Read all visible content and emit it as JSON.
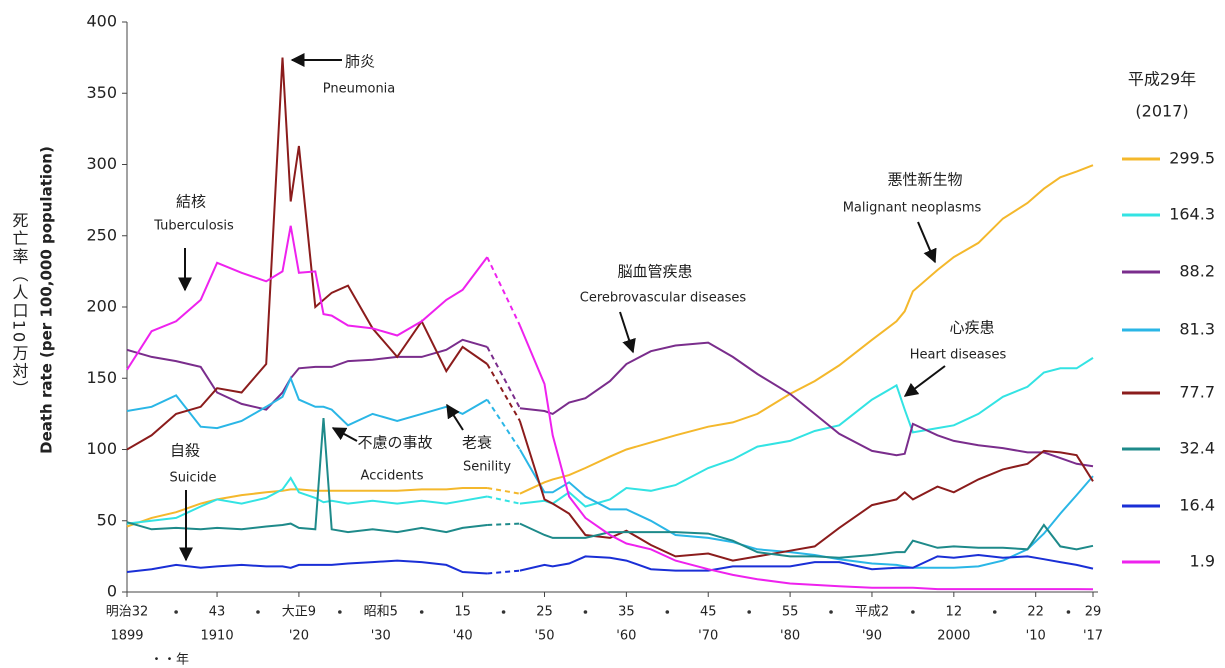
{
  "chart_data": {
    "type": "line",
    "ylabel": "死亡率（人口10万対）",
    "ylabel_en": "Death rate (per 100,000 population)",
    "xlabel": "・・年",
    "legend_title": "平成29年",
    "legend_subtitle": "(2017)",
    "xlim": [
      1899,
      2017
    ],
    "ylim": [
      0,
      400
    ],
    "yticks": [
      0,
      50,
      100,
      150,
      200,
      250,
      300,
      350,
      400
    ],
    "xticks": [
      {
        "value": 1899,
        "label": "明治32"
      },
      {
        "value": 1910,
        "label": "43"
      },
      {
        "value": 1920,
        "label": "大正9"
      },
      {
        "value": 1930,
        "label": "昭和5"
      },
      {
        "value": 1940,
        "label": "15"
      },
      {
        "value": 1950,
        "label": "25"
      },
      {
        "value": 1960,
        "label": "35"
      },
      {
        "value": 1970,
        "label": "45"
      },
      {
        "value": 1980,
        "label": "55"
      },
      {
        "value": 1990,
        "label": "平成2"
      },
      {
        "value": 2000,
        "label": "12"
      },
      {
        "value": 2010,
        "label": "22"
      },
      {
        "value": 2017,
        "label": "29"
      }
    ],
    "xticks_western": [
      1899,
      1910,
      {
        "value": 1920,
        "label": "'20"
      },
      {
        "value": 1930,
        "label": "'30"
      },
      {
        "value": 1940,
        "label": "'40"
      },
      {
        "value": 1950,
        "label": "'50"
      },
      {
        "value": 1960,
        "label": "'60"
      },
      {
        "value": 1970,
        "label": "'70"
      },
      {
        "value": 1980,
        "label": "'80"
      },
      {
        "value": 1990,
        "label": "'90"
      },
      2000,
      {
        "value": 2010,
        "label": "'10"
      },
      {
        "value": 2017,
        "label": "'17"
      }
    ],
    "xticks_minor": [
      1905,
      1915,
      1925,
      1935,
      1945,
      1955,
      1965,
      1975,
      1985,
      1995,
      2005,
      2014
    ],
    "x": [
      1899,
      1902,
      1905,
      1908,
      1910,
      1913,
      1916,
      1918,
      1919,
      1920,
      1922,
      1923,
      1924,
      1926,
      1929,
      1932,
      1935,
      1938,
      1940,
      1943,
      1945,
      1947,
      1950,
      1951,
      1953,
      1955,
      1958,
      1960,
      1963,
      1966,
      1970,
      1973,
      1976,
      1980,
      1983,
      1986,
      1990,
      1993,
      1994,
      1995,
      1998,
      2000,
      2003,
      2006,
      2009,
      2011,
      2013,
      2015,
      2017
    ],
    "series": [
      {
        "name": "悪性新生物",
        "name_en": "Malignant neoplasms",
        "color": "#f4b82c",
        "values": [
          46,
          52,
          56,
          62,
          65,
          68,
          70,
          71,
          72,
          72,
          71,
          71,
          71,
          71,
          71,
          71,
          72,
          72,
          73,
          73,
          null,
          69,
          77,
          79,
          82,
          87,
          95,
          100,
          105,
          110,
          116,
          119,
          125,
          139,
          148,
          159,
          177,
          190,
          197,
          211,
          226,
          235,
          245,
          262,
          273,
          283,
          291,
          295,
          299.5
        ]
      },
      {
        "name": "心疾患",
        "name_en": "Heart diseases",
        "color": "#33e3e3",
        "values": [
          48,
          50,
          52,
          60,
          65,
          62,
          66,
          72,
          80,
          70,
          66,
          63,
          64,
          62,
          64,
          62,
          64,
          62,
          64,
          67,
          null,
          62,
          64,
          62,
          70,
          60,
          65,
          73,
          71,
          75,
          87,
          93,
          102,
          106,
          113,
          117,
          135,
          145,
          128,
          112,
          115,
          117,
          125,
          137,
          144,
          154,
          157,
          157,
          164.3
        ]
      },
      {
        "name": "脳血管疾患",
        "name_en": "Cerebrovascular diseases",
        "color": "#7a2d8c",
        "values": [
          170,
          165,
          162,
          158,
          140,
          132,
          128,
          140,
          150,
          157,
          158,
          158,
          158,
          162,
          163,
          165,
          165,
          170,
          177,
          172,
          null,
          129,
          127,
          125,
          133,
          136,
          148,
          160,
          169,
          173,
          175,
          165,
          153,
          139,
          125,
          111,
          99,
          96,
          97,
          118,
          110,
          106,
          103,
          101,
          98,
          98,
          94,
          90,
          88.2
        ]
      },
      {
        "name": "老衰",
        "name_en": "Senility",
        "color": "#2ab6e6",
        "values": [
          127,
          130,
          138,
          116,
          115,
          120,
          130,
          137,
          150,
          135,
          130,
          130,
          128,
          117,
          125,
          120,
          125,
          130,
          125,
          135,
          null,
          100,
          70,
          70,
          77,
          67,
          58,
          58,
          50,
          40,
          38,
          35,
          30,
          28,
          26,
          23,
          20,
          19,
          18,
          17,
          17,
          17,
          18,
          22,
          30,
          41,
          55,
          68,
          81.3
        ]
      },
      {
        "name": "肺炎",
        "name_en": "Pneumonia",
        "color": "#8b1c1c",
        "values": [
          100,
          110,
          125,
          130,
          143,
          140,
          160,
          375,
          274,
          313,
          200,
          205,
          210,
          215,
          185,
          165,
          190,
          155,
          172,
          160,
          null,
          120,
          65,
          62,
          55,
          40,
          38,
          43,
          33,
          25,
          27,
          22,
          25,
          29,
          32,
          45,
          61,
          65,
          70,
          65,
          74,
          70,
          79,
          86,
          90,
          99,
          98,
          96,
          77.7
        ]
      },
      {
        "name": "不慮の事故",
        "name_en": "Accidents",
        "color": "#1e8a8a",
        "values": [
          49,
          44,
          45,
          44,
          45,
          44,
          46,
          47,
          48,
          45,
          44,
          122,
          44,
          42,
          44,
          42,
          45,
          42,
          45,
          47,
          null,
          48,
          40,
          38,
          38,
          38,
          42,
          42,
          42,
          42,
          41,
          36,
          28,
          25,
          25,
          24,
          26,
          28,
          28,
          36,
          31,
          32,
          31,
          31,
          30,
          47,
          32,
          30,
          32.4
        ]
      },
      {
        "name": "自殺",
        "name_en": "Suicide",
        "color": "#1a2fd6",
        "values": [
          14,
          16,
          19,
          17,
          18,
          19,
          18,
          18,
          17,
          19,
          19,
          19,
          19,
          20,
          21,
          22,
          21,
          19,
          14,
          13,
          null,
          15,
          19,
          18,
          20,
          25,
          24,
          22,
          16,
          15,
          15,
          18,
          18,
          18,
          21,
          21,
          16,
          17,
          17,
          17,
          25,
          24,
          26,
          24,
          25,
          23,
          21,
          19,
          16.4
        ]
      },
      {
        "name": "結核",
        "name_en": "Tuberculosis",
        "color": "#ee22ee",
        "values": [
          156,
          183,
          190,
          205,
          231,
          224,
          218,
          225,
          257,
          224,
          225,
          195,
          194,
          187,
          185,
          180,
          190,
          205,
          212,
          235,
          null,
          187,
          146,
          110,
          67,
          52,
          40,
          34,
          30,
          22,
          16,
          12,
          9,
          6,
          5,
          4,
          3,
          3,
          3,
          3,
          2,
          2,
          2,
          2,
          2,
          2,
          2,
          2,
          1.9
        ]
      }
    ]
  }
}
